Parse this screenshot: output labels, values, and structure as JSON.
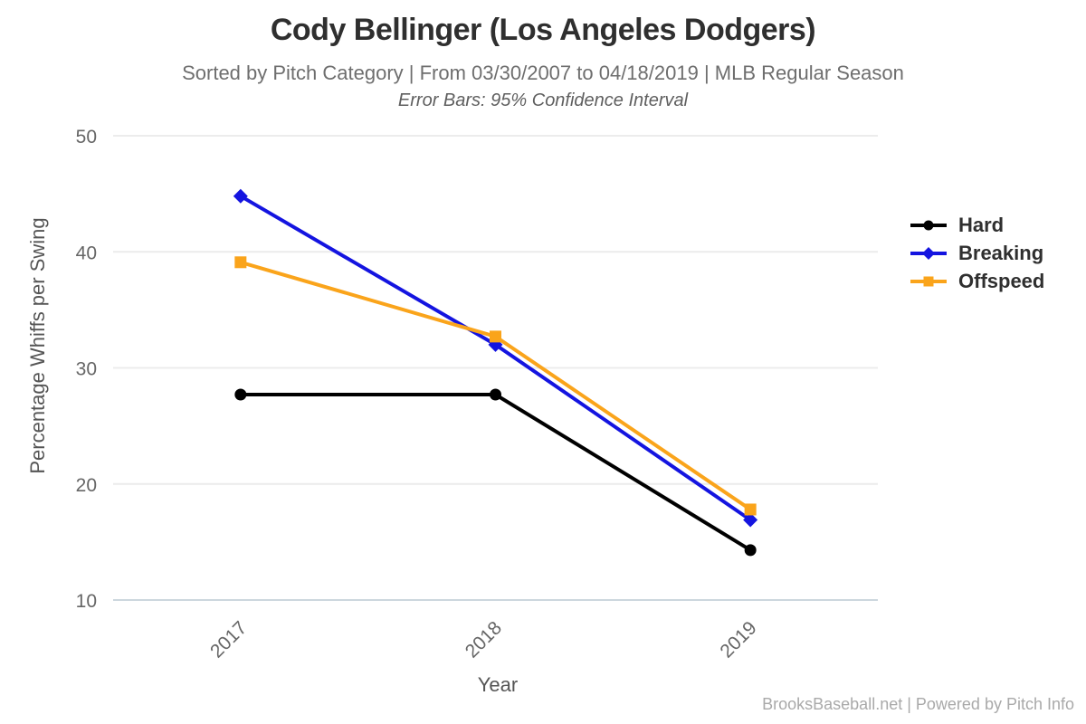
{
  "header": {
    "title": "Cody Bellinger (Los Angeles Dodgers)",
    "subtitle": "Sorted by Pitch Category | From 03/30/2007 to 04/18/2019 | MLB Regular Season",
    "note": "Error Bars: 95% Confidence Interval"
  },
  "footer": {
    "credit": "BrooksBaseball.net | Powered by Pitch Info"
  },
  "chart_data": {
    "type": "line",
    "title": "Cody Bellinger (Los Angeles Dodgers)",
    "subtitle": "Sorted by Pitch Category | From 03/30/2007 to 04/18/2019 | MLB Regular Season",
    "annotation": "Error Bars: 95% Confidence Interval",
    "categories": [
      "2017",
      "2018",
      "2019"
    ],
    "series": [
      {
        "name": "Hard",
        "color": "#000000",
        "marker": "circle",
        "values": [
          27.7,
          27.7,
          14.3
        ]
      },
      {
        "name": "Breaking",
        "color": "#1414e0",
        "marker": "diamond",
        "values": [
          44.8,
          32.0,
          16.9
        ]
      },
      {
        "name": "Offspeed",
        "color": "#faa41b",
        "marker": "square",
        "values": [
          39.1,
          32.7,
          17.8
        ]
      }
    ],
    "xlabel": "Year",
    "ylabel": "Percentage Whiffs per Swing",
    "ylim": [
      10,
      50
    ],
    "yticks": [
      10,
      20,
      30,
      40,
      50
    ],
    "grid": true,
    "legend_position": "right"
  },
  "styles": {
    "gridline_color": "#ececec",
    "baseline_color": "#ccd7de",
    "tick_label_color": "#666666",
    "line_width": 4
  }
}
